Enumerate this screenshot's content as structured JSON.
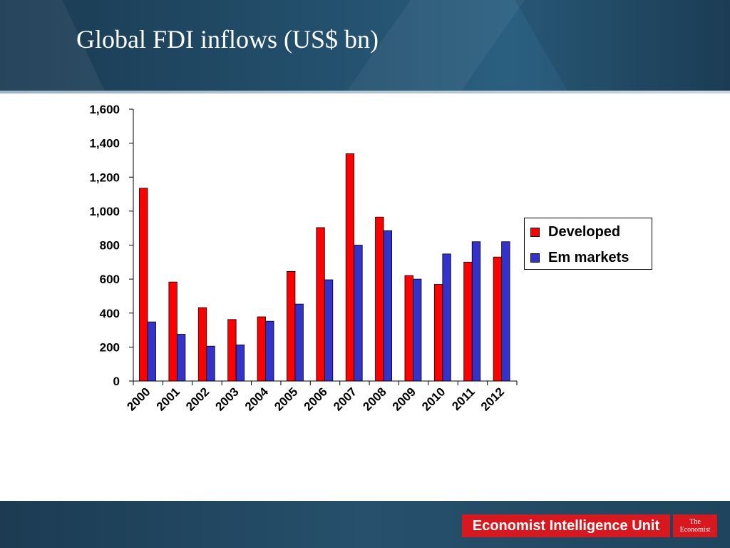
{
  "slide": {
    "title": "Global FDI inflows (US$ bn)"
  },
  "footer": {
    "eiu_logo_text": "Economist Intelligence Unit",
    "economist_logo_line1": "The",
    "economist_logo_line2": "Economist"
  },
  "colors": {
    "developed": "#ff0000",
    "em_markets": "#3333cc",
    "header": "#23506d",
    "logo_red": "#d7191f"
  },
  "chart_data": {
    "type": "bar",
    "categories": [
      "2000",
      "2001",
      "2002",
      "2003",
      "2004",
      "2005",
      "2006",
      "2007",
      "2008",
      "2009",
      "2010",
      "2011",
      "2012"
    ],
    "series": [
      {
        "name": "Developed",
        "color": "#ff0000",
        "values": [
          1135,
          583,
          432,
          362,
          378,
          645,
          903,
          1338,
          965,
          621,
          569,
          700,
          730
        ]
      },
      {
        "name": "Em markets",
        "color": "#3333cc",
        "values": [
          348,
          275,
          205,
          213,
          352,
          453,
          596,
          800,
          885,
          600,
          748,
          820,
          820
        ]
      }
    ],
    "ylim": [
      0,
      1600
    ],
    "yticks": [
      0,
      200,
      400,
      600,
      800,
      1000,
      1200,
      1400,
      1600
    ],
    "ytick_labels": [
      "0",
      "200",
      "400",
      "600",
      "800",
      "1,000",
      "1,200",
      "1,400",
      "1,600"
    ],
    "xlabel": "",
    "ylabel": "",
    "grid": false,
    "legend_position": "right"
  }
}
